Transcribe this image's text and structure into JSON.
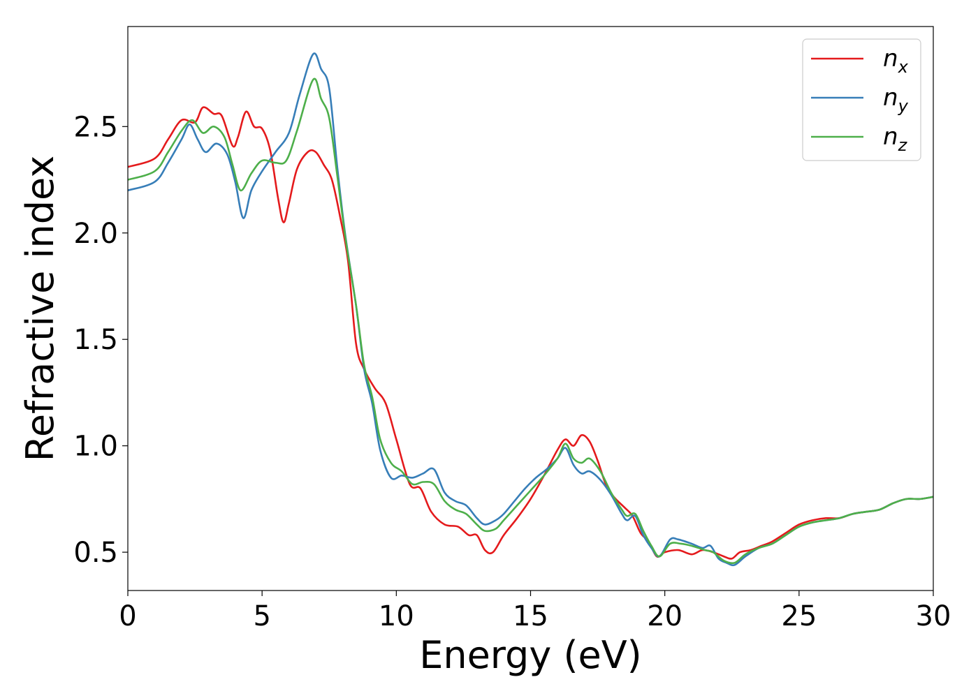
{
  "chart_data": {
    "type": "line",
    "title": "",
    "xlabel": "Energy (eV)",
    "ylabel": "Refractive index",
    "xlim": [
      0,
      30
    ],
    "ylim": [
      0.32,
      2.97
    ],
    "xticks": [
      0,
      5,
      10,
      15,
      20,
      25,
      30
    ],
    "xtick_labels": [
      "0",
      "5",
      "10",
      "15",
      "20",
      "25",
      "30"
    ],
    "yticks": [
      0.5,
      1.0,
      1.5,
      2.0,
      2.5
    ],
    "ytick_labels": [
      "0.5",
      "1.0",
      "1.5",
      "2.0",
      "2.5"
    ],
    "grid": false,
    "legend_position": "top-right",
    "series": [
      {
        "name": "n_x",
        "legend_base": "n",
        "legend_sub": "x",
        "color": "#e41a1c",
        "points": [
          [
            0,
            2.31
          ],
          [
            1,
            2.35
          ],
          [
            1.5,
            2.44
          ],
          [
            2,
            2.53
          ],
          [
            2.5,
            2.52
          ],
          [
            2.8,
            2.59
          ],
          [
            3.2,
            2.56
          ],
          [
            3.5,
            2.55
          ],
          [
            3.9,
            2.41
          ],
          [
            4.1,
            2.45
          ],
          [
            4.4,
            2.57
          ],
          [
            4.7,
            2.5
          ],
          [
            5.0,
            2.49
          ],
          [
            5.3,
            2.39
          ],
          [
            5.6,
            2.16
          ],
          [
            5.8,
            2.05
          ],
          [
            6.0,
            2.14
          ],
          [
            6.3,
            2.3
          ],
          [
            6.7,
            2.38
          ],
          [
            7.0,
            2.38
          ],
          [
            7.3,
            2.32
          ],
          [
            7.6,
            2.25
          ],
          [
            7.9,
            2.08
          ],
          [
            8.2,
            1.87
          ],
          [
            8.5,
            1.48
          ],
          [
            8.8,
            1.36
          ],
          [
            9.2,
            1.27
          ],
          [
            9.6,
            1.2
          ],
          [
            10.0,
            1.03
          ],
          [
            10.5,
            0.82
          ],
          [
            10.9,
            0.8
          ],
          [
            11.3,
            0.69
          ],
          [
            11.8,
            0.63
          ],
          [
            12.3,
            0.62
          ],
          [
            12.7,
            0.58
          ],
          [
            13.0,
            0.58
          ],
          [
            13.3,
            0.51
          ],
          [
            13.6,
            0.5
          ],
          [
            14.0,
            0.58
          ],
          [
            14.5,
            0.66
          ],
          [
            15.0,
            0.75
          ],
          [
            15.5,
            0.86
          ],
          [
            16.0,
            0.98
          ],
          [
            16.3,
            1.03
          ],
          [
            16.6,
            1.0
          ],
          [
            16.9,
            1.05
          ],
          [
            17.2,
            1.02
          ],
          [
            17.5,
            0.93
          ],
          [
            17.8,
            0.82
          ],
          [
            18.1,
            0.76
          ],
          [
            18.5,
            0.71
          ],
          [
            18.8,
            0.67
          ],
          [
            19.1,
            0.59
          ],
          [
            19.4,
            0.55
          ],
          [
            19.7,
            0.48
          ],
          [
            20.0,
            0.5
          ],
          [
            20.5,
            0.51
          ],
          [
            21.0,
            0.49
          ],
          [
            21.4,
            0.51
          ],
          [
            21.8,
            0.5
          ],
          [
            22.2,
            0.48
          ],
          [
            22.5,
            0.47
          ],
          [
            22.8,
            0.5
          ],
          [
            23.2,
            0.51
          ],
          [
            23.6,
            0.53
          ],
          [
            24.0,
            0.55
          ],
          [
            24.5,
            0.59
          ],
          [
            25.0,
            0.63
          ],
          [
            25.5,
            0.65
          ],
          [
            26.0,
            0.66
          ],
          [
            26.5,
            0.66
          ],
          [
            27.0,
            0.68
          ],
          [
            27.5,
            0.69
          ],
          [
            28.0,
            0.7
          ],
          [
            28.5,
            0.73
          ],
          [
            29.0,
            0.75
          ],
          [
            29.5,
            0.75
          ],
          [
            30.0,
            0.76
          ]
        ]
      },
      {
        "name": "n_y",
        "legend_base": "n",
        "legend_sub": "y",
        "color": "#377eb8",
        "points": [
          [
            0,
            2.2
          ],
          [
            1,
            2.24
          ],
          [
            1.5,
            2.33
          ],
          [
            2.0,
            2.44
          ],
          [
            2.3,
            2.51
          ],
          [
            2.6,
            2.44
          ],
          [
            2.9,
            2.38
          ],
          [
            3.3,
            2.42
          ],
          [
            3.7,
            2.37
          ],
          [
            4.0,
            2.24
          ],
          [
            4.3,
            2.07
          ],
          [
            4.6,
            2.2
          ],
          [
            5.0,
            2.29
          ],
          [
            5.5,
            2.38
          ],
          [
            6.0,
            2.47
          ],
          [
            6.4,
            2.65
          ],
          [
            6.9,
            2.84
          ],
          [
            7.2,
            2.77
          ],
          [
            7.5,
            2.68
          ],
          [
            7.8,
            2.31
          ],
          [
            8.1,
            1.99
          ],
          [
            8.5,
            1.66
          ],
          [
            8.8,
            1.36
          ],
          [
            9.1,
            1.2
          ],
          [
            9.4,
            0.98
          ],
          [
            9.8,
            0.85
          ],
          [
            10.2,
            0.86
          ],
          [
            10.6,
            0.85
          ],
          [
            11.0,
            0.87
          ],
          [
            11.4,
            0.89
          ],
          [
            11.8,
            0.78
          ],
          [
            12.2,
            0.74
          ],
          [
            12.6,
            0.72
          ],
          [
            13.0,
            0.66
          ],
          [
            13.3,
            0.63
          ],
          [
            13.7,
            0.65
          ],
          [
            14.0,
            0.68
          ],
          [
            14.4,
            0.74
          ],
          [
            14.8,
            0.8
          ],
          [
            15.2,
            0.85
          ],
          [
            15.6,
            0.89
          ],
          [
            16.0,
            0.94
          ],
          [
            16.3,
            0.99
          ],
          [
            16.6,
            0.91
          ],
          [
            16.9,
            0.87
          ],
          [
            17.2,
            0.88
          ],
          [
            17.6,
            0.84
          ],
          [
            18.0,
            0.77
          ],
          [
            18.4,
            0.68
          ],
          [
            18.6,
            0.65
          ],
          [
            18.9,
            0.67
          ],
          [
            19.2,
            0.58
          ],
          [
            19.5,
            0.52
          ],
          [
            19.8,
            0.48
          ],
          [
            20.2,
            0.56
          ],
          [
            20.5,
            0.56
          ],
          [
            21.0,
            0.54
          ],
          [
            21.4,
            0.52
          ],
          [
            21.7,
            0.53
          ],
          [
            22.0,
            0.47
          ],
          [
            22.3,
            0.45
          ],
          [
            22.6,
            0.44
          ],
          [
            23.0,
            0.48
          ],
          [
            23.5,
            0.52
          ],
          [
            24.0,
            0.54
          ],
          [
            24.5,
            0.58
          ],
          [
            25.0,
            0.62
          ],
          [
            25.5,
            0.64
          ],
          [
            26.0,
            0.65
          ],
          [
            26.5,
            0.66
          ],
          [
            27.0,
            0.68
          ],
          [
            27.5,
            0.69
          ],
          [
            28.0,
            0.7
          ],
          [
            28.5,
            0.73
          ],
          [
            29.0,
            0.75
          ],
          [
            29.5,
            0.75
          ],
          [
            30.0,
            0.76
          ]
        ]
      },
      {
        "name": "n_z",
        "legend_base": "n",
        "legend_sub": "z",
        "color": "#4daf4a",
        "points": [
          [
            0,
            2.25
          ],
          [
            1,
            2.29
          ],
          [
            1.5,
            2.38
          ],
          [
            2.0,
            2.48
          ],
          [
            2.4,
            2.53
          ],
          [
            2.8,
            2.47
          ],
          [
            3.2,
            2.5
          ],
          [
            3.6,
            2.45
          ],
          [
            3.9,
            2.32
          ],
          [
            4.2,
            2.2
          ],
          [
            4.6,
            2.28
          ],
          [
            5.0,
            2.34
          ],
          [
            5.5,
            2.33
          ],
          [
            5.9,
            2.34
          ],
          [
            6.3,
            2.48
          ],
          [
            6.9,
            2.72
          ],
          [
            7.2,
            2.63
          ],
          [
            7.5,
            2.54
          ],
          [
            7.8,
            2.27
          ],
          [
            8.1,
            1.98
          ],
          [
            8.5,
            1.66
          ],
          [
            8.8,
            1.38
          ],
          [
            9.1,
            1.23
          ],
          [
            9.4,
            1.03
          ],
          [
            9.8,
            0.92
          ],
          [
            10.2,
            0.88
          ],
          [
            10.6,
            0.82
          ],
          [
            11.0,
            0.83
          ],
          [
            11.4,
            0.82
          ],
          [
            11.8,
            0.74
          ],
          [
            12.2,
            0.7
          ],
          [
            12.6,
            0.68
          ],
          [
            13.0,
            0.63
          ],
          [
            13.3,
            0.6
          ],
          [
            13.7,
            0.61
          ],
          [
            14.0,
            0.65
          ],
          [
            14.5,
            0.72
          ],
          [
            15.0,
            0.79
          ],
          [
            15.5,
            0.86
          ],
          [
            16.0,
            0.94
          ],
          [
            16.3,
            1.01
          ],
          [
            16.6,
            0.94
          ],
          [
            16.9,
            0.92
          ],
          [
            17.2,
            0.94
          ],
          [
            17.6,
            0.88
          ],
          [
            18.0,
            0.78
          ],
          [
            18.4,
            0.7
          ],
          [
            18.6,
            0.67
          ],
          [
            18.9,
            0.68
          ],
          [
            19.2,
            0.6
          ],
          [
            19.5,
            0.53
          ],
          [
            19.8,
            0.48
          ],
          [
            20.2,
            0.54
          ],
          [
            20.6,
            0.54
          ],
          [
            21.0,
            0.53
          ],
          [
            21.5,
            0.51
          ],
          [
            21.8,
            0.5
          ],
          [
            22.2,
            0.46
          ],
          [
            22.6,
            0.45
          ],
          [
            23.0,
            0.49
          ],
          [
            23.5,
            0.52
          ],
          [
            24.0,
            0.54
          ],
          [
            24.5,
            0.58
          ],
          [
            25.0,
            0.62
          ],
          [
            25.5,
            0.64
          ],
          [
            26.0,
            0.65
          ],
          [
            26.5,
            0.66
          ],
          [
            27.0,
            0.68
          ],
          [
            27.5,
            0.69
          ],
          [
            28.0,
            0.7
          ],
          [
            28.5,
            0.73
          ],
          [
            29.0,
            0.75
          ],
          [
            29.5,
            0.75
          ],
          [
            30.0,
            0.76
          ]
        ]
      }
    ]
  }
}
